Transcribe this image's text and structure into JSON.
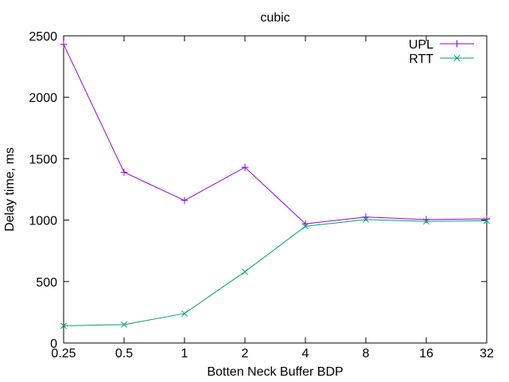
{
  "chart_data": {
    "type": "line",
    "title": "cubic",
    "xlabel": "Botten Neck Buffer BDP",
    "ylabel": "Delay time, ms",
    "categories": [
      "0.25",
      "0.5",
      "1",
      "2",
      "4",
      "8",
      "16",
      "32"
    ],
    "x_scale": "log2",
    "ylim": [
      0,
      2500
    ],
    "yticks": [
      0,
      500,
      1000,
      1500,
      2000,
      2500
    ],
    "grid": false,
    "legend_position": "top-right",
    "series": [
      {
        "name": "UPL",
        "color": "#9400d3",
        "marker": "plus",
        "values": [
          2430,
          1390,
          1160,
          1430,
          970,
          1025,
          1005,
          1010
        ]
      },
      {
        "name": "RTT",
        "color": "#009e73",
        "marker": "cross",
        "values": [
          140,
          150,
          240,
          580,
          950,
          1005,
          990,
          995
        ]
      }
    ]
  }
}
